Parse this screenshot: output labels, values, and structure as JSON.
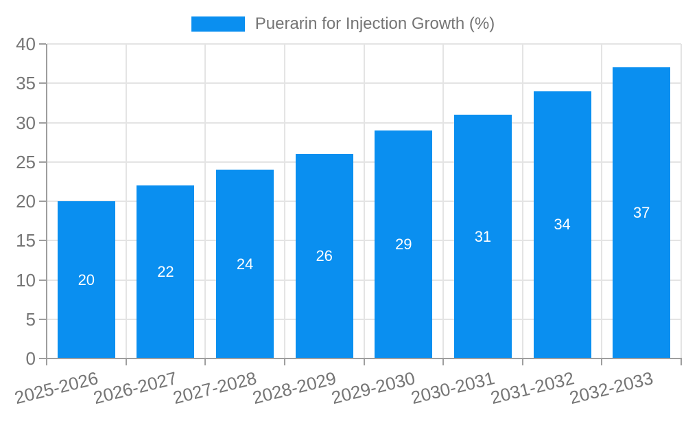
{
  "chart_data": {
    "type": "bar",
    "title": "Puerarin for Injection Growth (%)",
    "legend_position": "top",
    "categories": [
      "2025-2026",
      "2026-2027",
      "2027-2028",
      "2028-2029",
      "2029-2030",
      "2030-2031",
      "2031-2032",
      "2032-2033"
    ],
    "values": [
      20,
      22,
      24,
      26,
      29,
      31,
      34,
      37
    ],
    "value_labels": [
      "20",
      "22",
      "24",
      "26",
      "29",
      "31",
      "34",
      "37"
    ],
    "xlabel": "",
    "ylabel": "",
    "ylim": [
      0,
      40
    ],
    "yticks": [
      "0",
      "5",
      "10",
      "15",
      "20",
      "25",
      "30",
      "35",
      "40"
    ],
    "grid": true,
    "bar_color": "#0a8ff0",
    "value_label_color": "#ffffff",
    "grid_color": "#e4e4e4",
    "axis_color": "#9e9e9e",
    "tick_text_color": "#757575"
  }
}
